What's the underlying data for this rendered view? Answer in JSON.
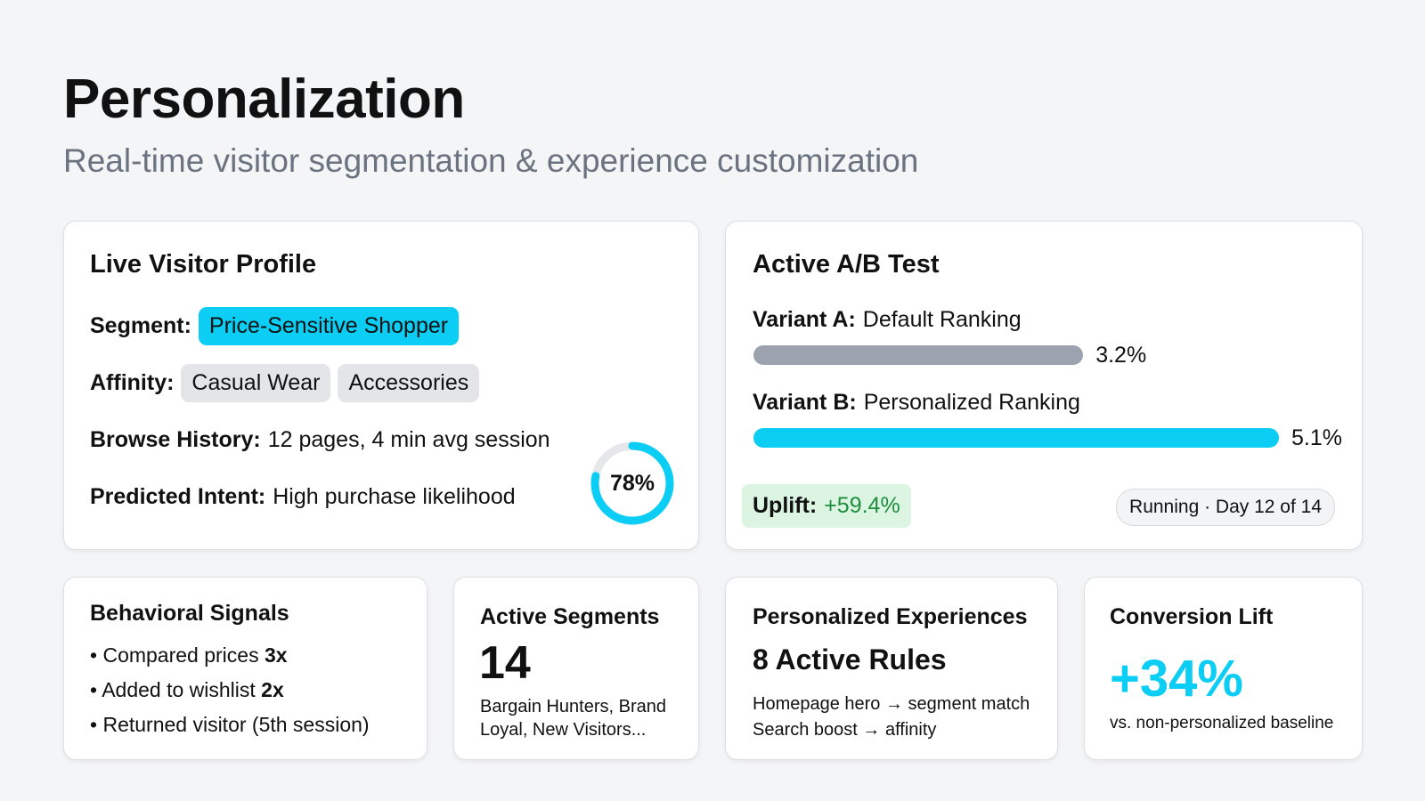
{
  "header": {
    "title": "Personalization",
    "subtitle": "Real-time visitor segmentation & experience customization"
  },
  "profile": {
    "title": "Live Visitor Profile",
    "segment_label": "Segment:",
    "segment": "Price-Sensitive Shopper",
    "affinity_label": "Affinity:",
    "affinities": [
      "Casual Wear",
      "Accessories"
    ],
    "browse_label": "Browse History:",
    "browse": "12 pages, 4 min avg session",
    "intent_label": "Predicted Intent:",
    "intent": "High purchase likelihood",
    "intent_score_text": "78%",
    "intent_score": 78
  },
  "abtest": {
    "title": "Active A/B Test",
    "variants": [
      {
        "label": "Variant A:",
        "name": "Default Ranking",
        "value_text": "3.2%",
        "value": 3.2,
        "color": "#9ca3af"
      },
      {
        "label": "Variant B:",
        "name": "Personalized Ranking",
        "value_text": "5.1%",
        "value": 5.1,
        "color": "#0ccdf3"
      }
    ],
    "uplift_label": "Uplift:",
    "uplift": "+59.4%",
    "status": "Running · Day 12 of 14"
  },
  "signals": {
    "title": "Behavioral Signals",
    "items": [
      {
        "text": "Compared prices ",
        "bold": "3x"
      },
      {
        "text": "Added to wishlist ",
        "bold": "2x"
      },
      {
        "text": "Returned visitor (5th session)",
        "bold": ""
      }
    ]
  },
  "segments": {
    "title": "Active Segments",
    "count": "14",
    "desc": "Bargain Hunters, Brand Loyal, New Visitors..."
  },
  "experiences": {
    "title": "Personalized Experiences",
    "rules": "8 Active Rules",
    "lines": [
      "Homepage hero → segment match",
      "Search boost → affinity"
    ]
  },
  "lift": {
    "title": "Conversion Lift",
    "value": "+34%",
    "desc": "vs. non-personalized baseline"
  },
  "colors": {
    "accent": "#0ccdf3",
    "success": "#1e8e3e",
    "success_bg": "#dcf5e3"
  }
}
